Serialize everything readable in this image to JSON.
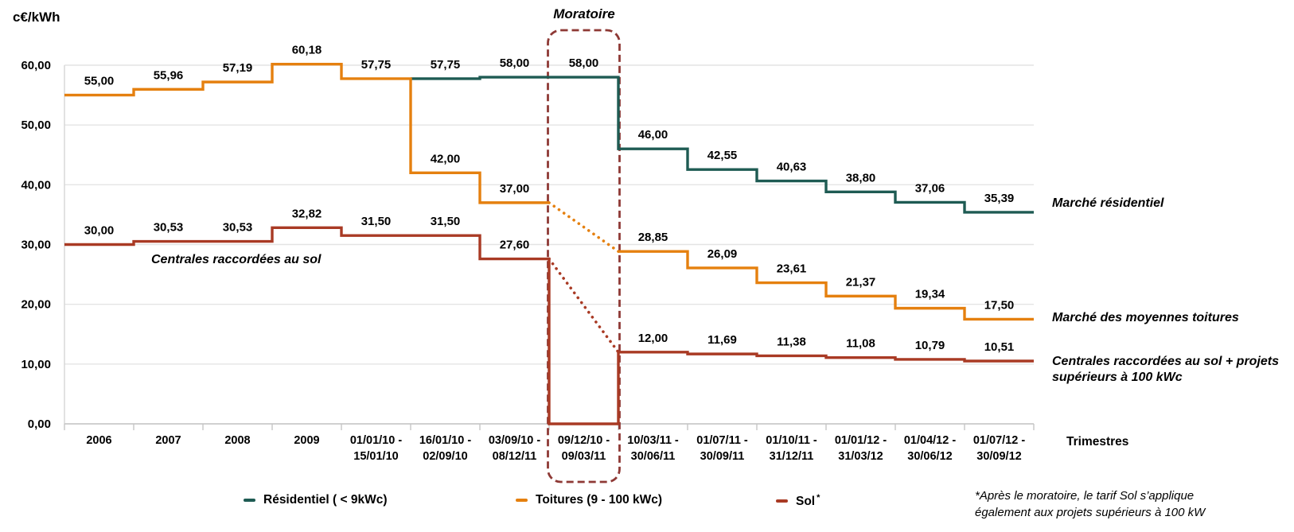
{
  "chart_data": {
    "type": "line",
    "subtype": "step",
    "unit_label": "c€/kWh",
    "x_axis_label": "Trimestres",
    "ylim": [
      0,
      65
    ],
    "grid": true,
    "yticks": [
      {
        "value": 0,
        "label": "0,00"
      },
      {
        "value": 10,
        "label": "10,00"
      },
      {
        "value": 20,
        "label": "20,00"
      },
      {
        "value": 30,
        "label": "30,00"
      },
      {
        "value": 40,
        "label": "40,00"
      },
      {
        "value": 50,
        "label": "50,00"
      },
      {
        "value": 60,
        "label": "60,00"
      }
    ],
    "categories": [
      [
        "2006"
      ],
      [
        "2007"
      ],
      [
        "2008"
      ],
      [
        "2009"
      ],
      [
        "01/01/10 -",
        "15/01/10"
      ],
      [
        "16/01/10 -",
        "02/09/10"
      ],
      [
        "03/09/10 -",
        "08/12/11"
      ],
      [
        "09/12/10 -",
        "09/03/11"
      ],
      [
        "10/03/11 -",
        "30/06/11"
      ],
      [
        "01/07/11 -",
        "30/09/11"
      ],
      [
        "01/10/11 -",
        "31/12/11"
      ],
      [
        "01/01/12 -",
        "31/03/12"
      ],
      [
        "01/04/12 -",
        "30/06/12"
      ],
      [
        "01/07/12 -",
        "30/09/12"
      ]
    ],
    "moratoire_column_index": 7,
    "series": [
      {
        "name": "Résidentiel ( < 9kWc)",
        "color": "#1E5B53",
        "values": [
          null,
          null,
          null,
          null,
          null,
          57.75,
          58.0,
          58.0,
          46.0,
          42.55,
          40.63,
          38.8,
          37.06,
          35.39
        ],
        "labels": [
          null,
          null,
          null,
          null,
          null,
          "57,75",
          "58,00",
          "58,00",
          "46,00",
          "42,55",
          "40,63",
          "38,80",
          "37,06",
          "35,39"
        ]
      },
      {
        "name": "Toitures (9 - 100 kWc)",
        "color": "#E5800F",
        "values": [
          55.0,
          55.96,
          57.19,
          60.18,
          57.75,
          42.0,
          37.0,
          null,
          28.85,
          26.09,
          23.61,
          21.37,
          19.34,
          17.5
        ],
        "labels": [
          "55,00",
          "55,96",
          "57,19",
          "60,18",
          "57,75",
          "42,00",
          "37,00",
          null,
          "28,85",
          "26,09",
          "23,61",
          "21,37",
          "19,34",
          "17,50"
        ],
        "dotted_transition": {
          "from_index": 6,
          "to_index": 8
        }
      },
      {
        "name": "Sol",
        "color": "#A93A24",
        "values": [
          30.0,
          30.53,
          30.53,
          32.82,
          31.5,
          31.5,
          27.6,
          0.0,
          12.0,
          11.69,
          11.38,
          11.08,
          10.79,
          10.51
        ],
        "labels": [
          "30,00",
          "30,53",
          "30,53",
          "32,82",
          "31,50",
          "31,50",
          "27,60",
          null,
          "12,00",
          "11,69",
          "11,38",
          "11,08",
          "10,79",
          "10,51"
        ],
        "dotted_transition": {
          "from_index": 6,
          "to_index": 8
        }
      }
    ]
  },
  "annotations": {
    "moratoire": "Moratoire",
    "moratoire_box_color": "#8E3935",
    "ground_annotation": "Centrales raccordées au sol",
    "right_labels": [
      "Marché résidentiel",
      "Marché des moyennes toitures",
      "Centrales raccordées au sol + projets supérieurs à 100 kWc"
    ],
    "footnote_lines": [
      "*Après le moratoire, le tarif Sol s’applique",
      "également aux projets supérieurs à 100 kW"
    ]
  },
  "legend": [
    {
      "label": "Résidentiel ( < 9kWc)",
      "color": "#1E5B53"
    },
    {
      "label": "Toitures (9 - 100 kWc)",
      "color": "#E5800F"
    },
    {
      "label": "Sol",
      "suffix": "*",
      "color": "#A93A24"
    }
  ]
}
